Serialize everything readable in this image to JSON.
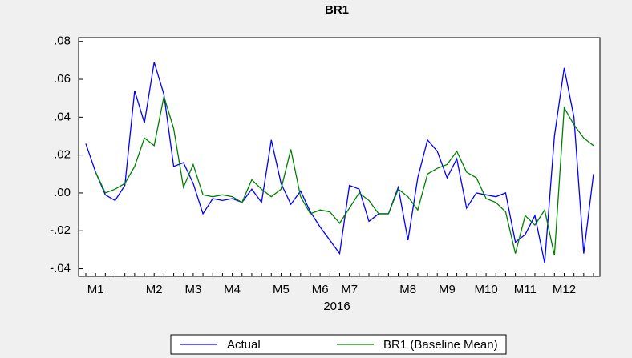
{
  "chart_data": {
    "type": "line",
    "title": "BR1",
    "xlabel": "2016",
    "categories": [
      null,
      "M1",
      null,
      null,
      null,
      null,
      null,
      "M2",
      null,
      null,
      null,
      "M3",
      null,
      null,
      null,
      "M4",
      null,
      null,
      null,
      null,
      "M5",
      null,
      null,
      null,
      "M6",
      null,
      null,
      "M7",
      null,
      null,
      null,
      null,
      null,
      "M8",
      null,
      null,
      null,
      "M9",
      null,
      null,
      null,
      "M10",
      null,
      null,
      null,
      "M11",
      null,
      null,
      null,
      "M12",
      null,
      null,
      null
    ],
    "series": [
      {
        "name": "Actual",
        "color": "#0000ff",
        "values": [
          0.026,
          0.011,
          -0.001,
          -0.004,
          0.004,
          0.054,
          0.037,
          0.069,
          0.052,
          0.014,
          0.016,
          0.005,
          -0.011,
          -0.003,
          -0.004,
          -0.003,
          -0.005,
          0.002,
          -0.005,
          0.028,
          0.005,
          -0.006,
          0.001,
          -0.01,
          -0.018,
          -0.025,
          -0.032,
          0.004,
          0.002,
          -0.015,
          -0.011,
          -0.011,
          0.003,
          -0.025,
          0.008,
          0.028,
          0.022,
          0.008,
          0.018,
          -0.008,
          0.0,
          -0.001,
          -0.002,
          0.0,
          -0.026,
          -0.022,
          -0.012,
          -0.037,
          0.03,
          0.066,
          0.04,
          -0.032,
          0.01
        ]
      },
      {
        "name": "BR1 (Baseline Mean)",
        "color": "#008000",
        "values": [
          null,
          0.011,
          0.0,
          0.002,
          0.005,
          0.014,
          0.029,
          0.025,
          0.051,
          0.034,
          0.003,
          0.015,
          -0.001,
          -0.002,
          -0.001,
          -0.002,
          -0.005,
          0.007,
          0.002,
          -0.002,
          0.002,
          0.023,
          -0.002,
          -0.011,
          -0.009,
          -0.01,
          -0.016,
          -0.008,
          0.0,
          -0.004,
          -0.011,
          -0.011,
          0.002,
          -0.002,
          -0.009,
          0.01,
          0.013,
          0.015,
          0.022,
          0.011,
          0.008,
          -0.003,
          -0.005,
          -0.01,
          -0.032,
          -0.012,
          -0.017,
          -0.009,
          -0.033,
          0.045,
          0.036,
          0.029,
          0.025
        ]
      }
    ],
    "ylim": [
      -0.044,
      0.082
    ],
    "yticks": [
      {
        "value": -0.04,
        "label": "-.04"
      },
      {
        "value": -0.02,
        "label": "-.02"
      },
      {
        "value": 0,
        "label": ".00"
      },
      {
        "value": 0.02,
        "label": ".02"
      },
      {
        "value": 0.04,
        "label": ".04"
      },
      {
        "value": 0.06,
        "label": ".06"
      },
      {
        "value": 0.08,
        "label": ".08"
      }
    ],
    "grid": false,
    "legend": "bottom"
  }
}
